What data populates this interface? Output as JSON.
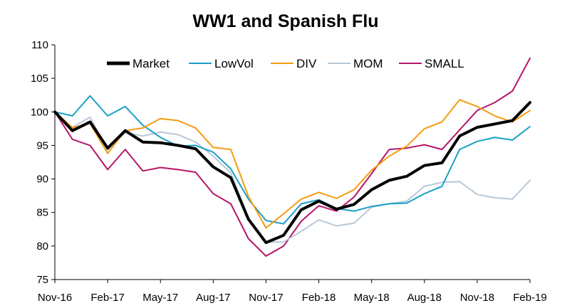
{
  "chart_data": {
    "type": "line",
    "title": "WW1 and Spanish Flu",
    "xlabel": "",
    "ylabel": "",
    "ylim": [
      75,
      110
    ],
    "yticks": [
      75,
      80,
      85,
      90,
      95,
      100,
      105,
      110
    ],
    "grid": false,
    "legend_position": "top",
    "x": [
      "Nov-16",
      "Dec-16",
      "Jan-17",
      "Feb-17",
      "Mar-17",
      "Apr-17",
      "May-17",
      "Jun-17",
      "Jul-17",
      "Aug-17",
      "Sep-17",
      "Oct-17",
      "Nov-17",
      "Dec-17",
      "Jan-18",
      "Feb-18",
      "Mar-18",
      "Apr-18",
      "May-18",
      "Jun-18",
      "Jul-18",
      "Aug-18",
      "Sep-18",
      "Oct-18",
      "Nov-18",
      "Dec-18",
      "Jan-19",
      "Feb-19"
    ],
    "xtick_labels": [
      "Nov-16",
      "Feb-17",
      "May-17",
      "Aug-17",
      "Nov-17",
      "Feb-18",
      "May-18",
      "Aug-18",
      "Nov-18",
      "Feb-19"
    ],
    "series": [
      {
        "name": "Market",
        "color": "#000000",
        "width": 4,
        "values": [
          100.0,
          97.2,
          98.5,
          94.6,
          97.2,
          95.5,
          95.4,
          95.0,
          94.5,
          91.8,
          90.2,
          84.0,
          80.5,
          81.6,
          85.4,
          86.7,
          85.5,
          86.2,
          88.4,
          89.8,
          90.4,
          92.0,
          92.4,
          96.4,
          97.7,
          98.2,
          98.7,
          101.4
        ]
      },
      {
        "name": "LowVol",
        "color": "#1aa0c6",
        "width": 2,
        "values": [
          100.0,
          99.4,
          102.4,
          99.4,
          100.8,
          98.0,
          96.2,
          94.9,
          95.0,
          94.0,
          91.5,
          87.0,
          83.8,
          83.3,
          86.3,
          86.9,
          85.6,
          85.2,
          85.9,
          86.3,
          86.4,
          87.8,
          88.9,
          94.4,
          95.6,
          96.2,
          95.8,
          97.8
        ]
      },
      {
        "name": "DIV",
        "color": "#f39c12",
        "width": 2,
        "values": [
          100.0,
          97.6,
          98.3,
          93.8,
          97.2,
          97.6,
          99.0,
          98.7,
          97.6,
          94.7,
          94.4,
          87.4,
          82.7,
          84.8,
          87.0,
          88.0,
          87.1,
          88.4,
          91.3,
          93.4,
          94.9,
          97.5,
          98.5,
          101.8,
          100.8,
          99.4,
          98.5,
          100.2
        ]
      },
      {
        "name": "MOM",
        "color": "#b8c8d8",
        "width": 2,
        "values": [
          100.0,
          97.7,
          99.2,
          94.3,
          96.9,
          96.4,
          97.0,
          96.6,
          95.5,
          93.4,
          90.9,
          84.2,
          80.6,
          80.6,
          82.2,
          83.9,
          83.0,
          83.4,
          85.8,
          86.3,
          86.7,
          88.9,
          89.5,
          89.6,
          87.7,
          87.2,
          87.0,
          89.8
        ]
      },
      {
        "name": "SMALL",
        "color": "#b5176a",
        "width": 2,
        "values": [
          100.0,
          95.9,
          95.0,
          91.4,
          94.4,
          91.2,
          91.7,
          91.4,
          91.0,
          87.8,
          86.3,
          81.1,
          78.5,
          80.0,
          83.7,
          86.0,
          85.2,
          87.3,
          90.8,
          94.4,
          94.6,
          95.1,
          94.4,
          97.3,
          100.2,
          101.4,
          103.1,
          108.0
        ]
      }
    ]
  }
}
